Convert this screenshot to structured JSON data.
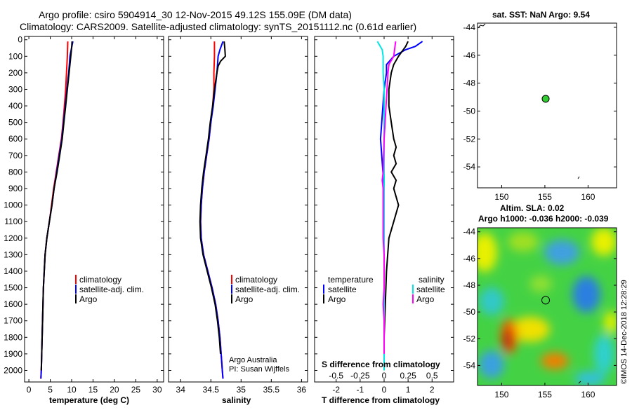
{
  "header": {
    "line1": "Argo profile: csiro 5904914_30 12-Nov-2015 49.12S 155.09E (DM data)",
    "line2": "Climatology: CARS2009. Satellite-adjusted climatology: synTS_20151112.nc (0.61d earlier)"
  },
  "colors": {
    "climatology": "#ff0000",
    "satellite": "#0000ff",
    "argo": "#000000",
    "sat_salinity": "#00e5e5",
    "salinity": "#ff00ff",
    "marker": "#33cc33"
  },
  "credits": {
    "group": "Argo Australia",
    "pi": "PI: Susan Wijffels",
    "stamp": "©IMOS 14-Dec-2018 12:28:29"
  },
  "chart_data": [
    {
      "type": "line",
      "title": "",
      "xlabel": "temperature (deg C)",
      "ylabel": "",
      "xlim": [
        -1,
        31.5
      ],
      "ylim": [
        2070,
        -20
      ],
      "xticks": [
        0,
        5,
        10,
        15,
        20,
        25,
        30
      ],
      "yticks": [
        0,
        100,
        200,
        300,
        400,
        500,
        600,
        700,
        800,
        900,
        1000,
        1100,
        1200,
        1300,
        1400,
        1500,
        1600,
        1700,
        1800,
        1900,
        2000
      ],
      "legend": [
        "climatology",
        "satellite-adj. clim.",
        "Argo"
      ],
      "series": [
        {
          "name": "climatology",
          "depth": [
            10,
            100,
            200,
            300,
            400,
            500,
            600,
            700,
            800,
            900,
            1000,
            1100,
            1200,
            1300,
            1400,
            1500,
            1600,
            1700,
            1800,
            1900,
            2000,
            2050
          ],
          "values": [
            9.1,
            9.0,
            8.8,
            8.6,
            8.3,
            8.0,
            7.6,
            7.0,
            6.4,
            5.8,
            5.3,
            4.8,
            4.2,
            3.8,
            3.6,
            3.4,
            3.3,
            3.2,
            3.1,
            3.0,
            2.9,
            2.8
          ]
        },
        {
          "name": "satellite-adj. clim.",
          "depth": [
            10,
            60,
            100,
            200,
            300,
            400,
            500,
            600,
            700,
            800,
            900,
            1000,
            1100,
            1200,
            1300,
            1400,
            1500,
            1600,
            1700,
            1800,
            1900,
            2000,
            2050
          ],
          "values": [
            10.3,
            9.9,
            9.6,
            9.3,
            8.9,
            8.5,
            8.1,
            7.7,
            7.1,
            6.5,
            5.9,
            5.4,
            4.8,
            4.2,
            3.8,
            3.6,
            3.4,
            3.3,
            3.2,
            3.1,
            3.0,
            2.9,
            2.8
          ]
        },
        {
          "name": "Argo",
          "depth": [
            10,
            50,
            100,
            150,
            200,
            300,
            400,
            500,
            600,
            700,
            800,
            900,
            1000,
            1100,
            1200,
            1300,
            1400,
            1500,
            1600,
            1700,
            1800,
            1900,
            2000
          ],
          "values": [
            10.1,
            10.0,
            9.8,
            9.6,
            9.4,
            9.0,
            8.6,
            8.2,
            7.8,
            7.2,
            6.6,
            5.9,
            5.4,
            4.8,
            4.2,
            3.8,
            3.6,
            3.4,
            3.3,
            3.2,
            3.1,
            3.0,
            2.9
          ]
        }
      ]
    },
    {
      "type": "line",
      "title": "",
      "xlabel": "salinity",
      "ylabel": "",
      "xlim": [
        33.8,
        36.1
      ],
      "ylim": [
        2070,
        -20
      ],
      "xticks": [
        34,
        34.5,
        35,
        35.5,
        36
      ],
      "tick_labels": [
        "34",
        "34.5",
        "35",
        "35.5",
        "36"
      ],
      "legend": [
        "climatology",
        "satellite-adj. clim.",
        "Argo"
      ],
      "series": [
        {
          "name": "climatology",
          "depth": [
            10,
            100,
            200,
            300,
            400,
            500,
            600,
            700,
            800,
            900,
            1000,
            1100,
            1200,
            1300,
            1400,
            1500,
            1600,
            1700,
            1800,
            1900,
            2000,
            2050
          ],
          "values": [
            34.56,
            34.56,
            34.55,
            34.55,
            34.53,
            34.5,
            34.47,
            34.43,
            34.39,
            34.36,
            34.34,
            34.33,
            34.34,
            34.38,
            34.45,
            34.52,
            34.58,
            34.62,
            34.65,
            34.67,
            34.69,
            34.7
          ]
        },
        {
          "name": "satellite-adj. clim.",
          "depth": [
            10,
            60,
            100,
            200,
            300,
            400,
            500,
            600,
            700,
            800,
            900,
            1000,
            1100,
            1200,
            1300,
            1400,
            1500,
            1600,
            1700,
            1800,
            1900,
            2000,
            2050
          ],
          "values": [
            34.7,
            34.65,
            34.62,
            34.6,
            34.57,
            34.54,
            34.5,
            34.47,
            34.43,
            34.39,
            34.36,
            34.34,
            34.33,
            34.34,
            34.38,
            34.45,
            34.52,
            34.58,
            34.62,
            34.65,
            34.67,
            34.69,
            34.7
          ]
        },
        {
          "name": "Argo",
          "depth": [
            10,
            50,
            100,
            130,
            160,
            200,
            300,
            400,
            500,
            600,
            700,
            800,
            900,
            1000,
            1100,
            1200,
            1300,
            1400,
            1500,
            1600,
            1700,
            1800,
            1900
          ],
          "values": [
            34.72,
            34.73,
            34.74,
            34.66,
            34.62,
            34.6,
            34.56,
            34.53,
            34.49,
            34.46,
            34.42,
            34.38,
            34.35,
            34.33,
            34.32,
            34.33,
            34.37,
            34.44,
            34.51,
            34.57,
            34.61,
            34.64,
            34.66
          ]
        }
      ]
    },
    {
      "type": "line",
      "title": "",
      "xlabel": "T difference from climatology",
      "ylabel": "",
      "xlim": [
        -2.9,
        2.9
      ],
      "ylim": [
        2070,
        -20
      ],
      "xticks": [
        -2,
        -1,
        0,
        1,
        2
      ],
      "legend_left_title": "temperature",
      "legend_right_title": "salinity",
      "legend": [
        "satellite",
        "Argo",
        "satellite",
        "Argo"
      ],
      "secondary_axis": {
        "label": "S difference from climatology",
        "ticks": [
          -0.5,
          -0.25,
          0,
          0.25,
          0.5
        ],
        "tick_labels": [
          "-0.5",
          "-0.25",
          "0",
          "0.25",
          "0.5"
        ]
      },
      "series": [
        {
          "name": "temperature satellite",
          "depth": [
            10,
            40,
            60,
            100,
            150,
            200,
            300,
            400,
            500,
            600,
            700,
            800,
            900,
            1000,
            1100,
            1200,
            1400,
            1600,
            1800,
            2000
          ],
          "values": [
            1.6,
            1.3,
            0.9,
            0.4,
            0.1,
            0.1,
            0.0,
            -0.05,
            -0.1,
            -0.15,
            -0.1,
            -0.05,
            0.0,
            0.0,
            0.0,
            0.0,
            0.0,
            0.0,
            0.0,
            0.0
          ]
        },
        {
          "name": "temperature Argo",
          "depth": [
            10,
            40,
            60,
            100,
            150,
            200,
            300,
            400,
            500,
            600,
            650,
            700,
            750,
            800,
            850,
            900,
            950,
            1000,
            1050,
            1100,
            1200,
            1400,
            1600,
            1800,
            2000
          ],
          "values": [
            1.0,
            0.9,
            0.8,
            0.6,
            0.4,
            0.3,
            0.2,
            0.2,
            0.3,
            0.4,
            0.5,
            0.4,
            0.5,
            0.3,
            0.5,
            0.4,
            0.5,
            0.6,
            0.5,
            0.4,
            0.2,
            0.1,
            0.05,
            0.0,
            0.0
          ]
        },
        {
          "name": "salinity satellite",
          "depth": [
            10,
            60,
            100,
            200,
            300,
            400,
            500,
            600,
            800,
            1000,
            1200,
            1400,
            1600,
            1800,
            2000
          ],
          "values": [
            -0.07,
            -0.02,
            -0.01,
            -0.01,
            0.0,
            0.0,
            0.0,
            0.0,
            0.0,
            0.0,
            0.0,
            0.0,
            0.0,
            0.0,
            0.0
          ]
        },
        {
          "name": "salinity Argo",
          "depth": [
            10,
            100,
            150,
            200,
            300,
            400,
            500,
            600,
            700,
            800,
            850,
            900,
            1000,
            1100,
            1200,
            1300,
            1400,
            1500,
            1600,
            1700,
            1800,
            1900
          ],
          "values": [
            0.12,
            0.1,
            0.05,
            0.04,
            0.03,
            0.02,
            0.01,
            0.0,
            -0.005,
            -0.01,
            -0.02,
            -0.01,
            -0.01,
            -0.01,
            -0.01,
            0.0,
            0.0,
            0.0,
            -0.01,
            0.0,
            0.0,
            0.0
          ]
        }
      ]
    },
    {
      "type": "scatter",
      "title": "sat. SST: NaN Argo: 9.54",
      "xlim": [
        147.2,
        163.3
      ],
      "ylim": [
        -55.5,
        -43.7
      ],
      "xticks": [
        150,
        155,
        160
      ],
      "yticks": [
        -44,
        -46,
        -48,
        -50,
        -52,
        -54
      ],
      "tick_labels_x": [
        "150",
        "155",
        "160"
      ],
      "tick_labels_y": [
        "-44",
        "-46",
        "-48",
        "-50",
        "-52",
        "-54"
      ],
      "points": [
        {
          "lon": 155.09,
          "lat": -49.12
        }
      ]
    },
    {
      "type": "heatmap",
      "title": "Altim. SLA: 0.02",
      "subtitle": "Argo h1000: -0.036 h2000: -0.039",
      "xlim": [
        147.2,
        163.3
      ],
      "ylim": [
        -55.5,
        -43.7
      ],
      "xticks": [
        150,
        155,
        160
      ],
      "yticks": [
        -44,
        -46,
        -48,
        -50,
        -52,
        -54
      ],
      "tick_labels_x": [
        "150",
        "155",
        "160"
      ],
      "tick_labels_y": [
        "-44",
        "-46",
        "-48",
        "-50",
        "-52",
        "-54"
      ],
      "points": [
        {
          "lon": 155.09,
          "lat": -49.12
        }
      ]
    }
  ]
}
